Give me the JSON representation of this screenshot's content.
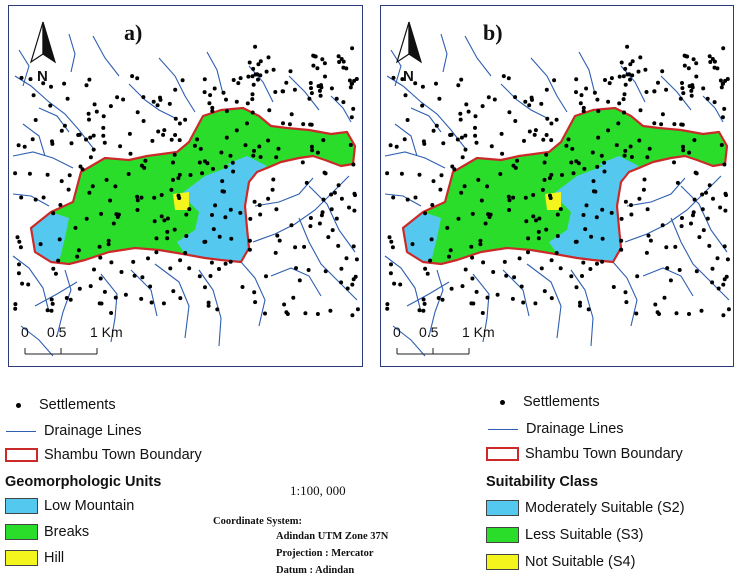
{
  "panels": [
    {
      "label": "a)",
      "north": "N",
      "scale": {
        "zero": "0",
        "mid": "0.5",
        "end": "1 Km"
      }
    },
    {
      "label": "b)",
      "north": "N",
      "scale": {
        "zero": "0",
        "mid": "0.5",
        "end": "1 Km"
      }
    }
  ],
  "legend_left": {
    "settlements": "Settlements",
    "drainage": "Drainage Lines",
    "boundary": "Shambu Town Boundary",
    "heading": "Geomorphologic Units",
    "classes": [
      {
        "label": "Low Mountain",
        "color": "#55c8f0"
      },
      {
        "label": "Breaks",
        "color": "#2bdd2b"
      },
      {
        "label": "Hill",
        "color": "#f5f51e"
      }
    ]
  },
  "legend_right": {
    "settlements": "Settlements",
    "drainage": "Drainage Lines",
    "boundary": "Shambu Town Boundary",
    "heading": "Suitability Class",
    "classes": [
      {
        "label": "Moderately Suitable (S2)",
        "color": "#55c8f0"
      },
      {
        "label": "Less Suitable (S3)",
        "color": "#2bdd2b"
      },
      {
        "label": "Not Suitable (S4)",
        "color": "#f5f51e"
      }
    ]
  },
  "map_scale": "1:100, 000",
  "coordinate_info": {
    "system_label": "Coordinate System:",
    "system_value": "Adindan UTM Zone 37N",
    "projection": "Projection : Mercator",
    "datum": "Datum : Adindan"
  },
  "colors": {
    "boundary": "#cc2a2a",
    "drainage": "#2e5fb0",
    "frame": "#2b3a7a"
  }
}
